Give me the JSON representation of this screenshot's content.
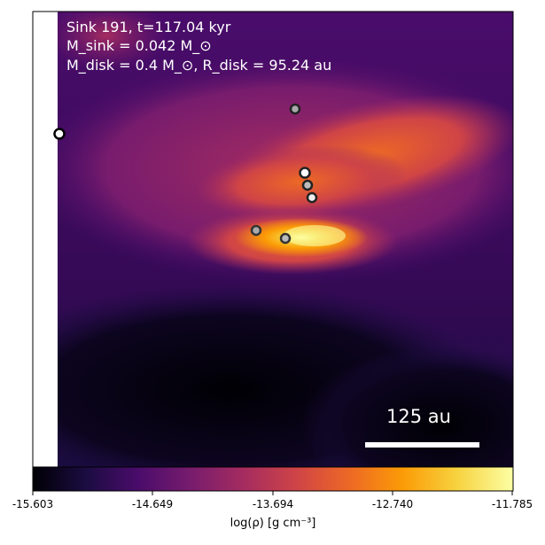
{
  "title": "Sink 191, t=117.04 kyr",
  "mass_line": "M_sink = 0.042 M_⊙",
  "disk_line": "M_disk = 0.4 M_⊙, R_disk = 95.24 au",
  "scale_bar": {
    "label": "125 au"
  },
  "colorbar": {
    "label": "log(ρ) [g cm⁻³]",
    "ticks": [
      "-15.603",
      "-14.649",
      "-13.694",
      "-12.740",
      "-11.785"
    ],
    "colormap": "inferno",
    "stops": [
      "#000004",
      "#1b0c41",
      "#4a0c6b",
      "#781c6d",
      "#a52c60",
      "#cf4446",
      "#ed6925",
      "#fb9b06",
      "#f7d13d",
      "#fcffa4"
    ]
  },
  "sinks": [
    {
      "name": "sink-left-edge"
    },
    {
      "name": "sink-top"
    },
    {
      "name": "sink-cluster-1"
    },
    {
      "name": "sink-cluster-2"
    },
    {
      "name": "sink-cluster-3"
    },
    {
      "name": "sink-center-left"
    },
    {
      "name": "sink-center"
    }
  ]
}
